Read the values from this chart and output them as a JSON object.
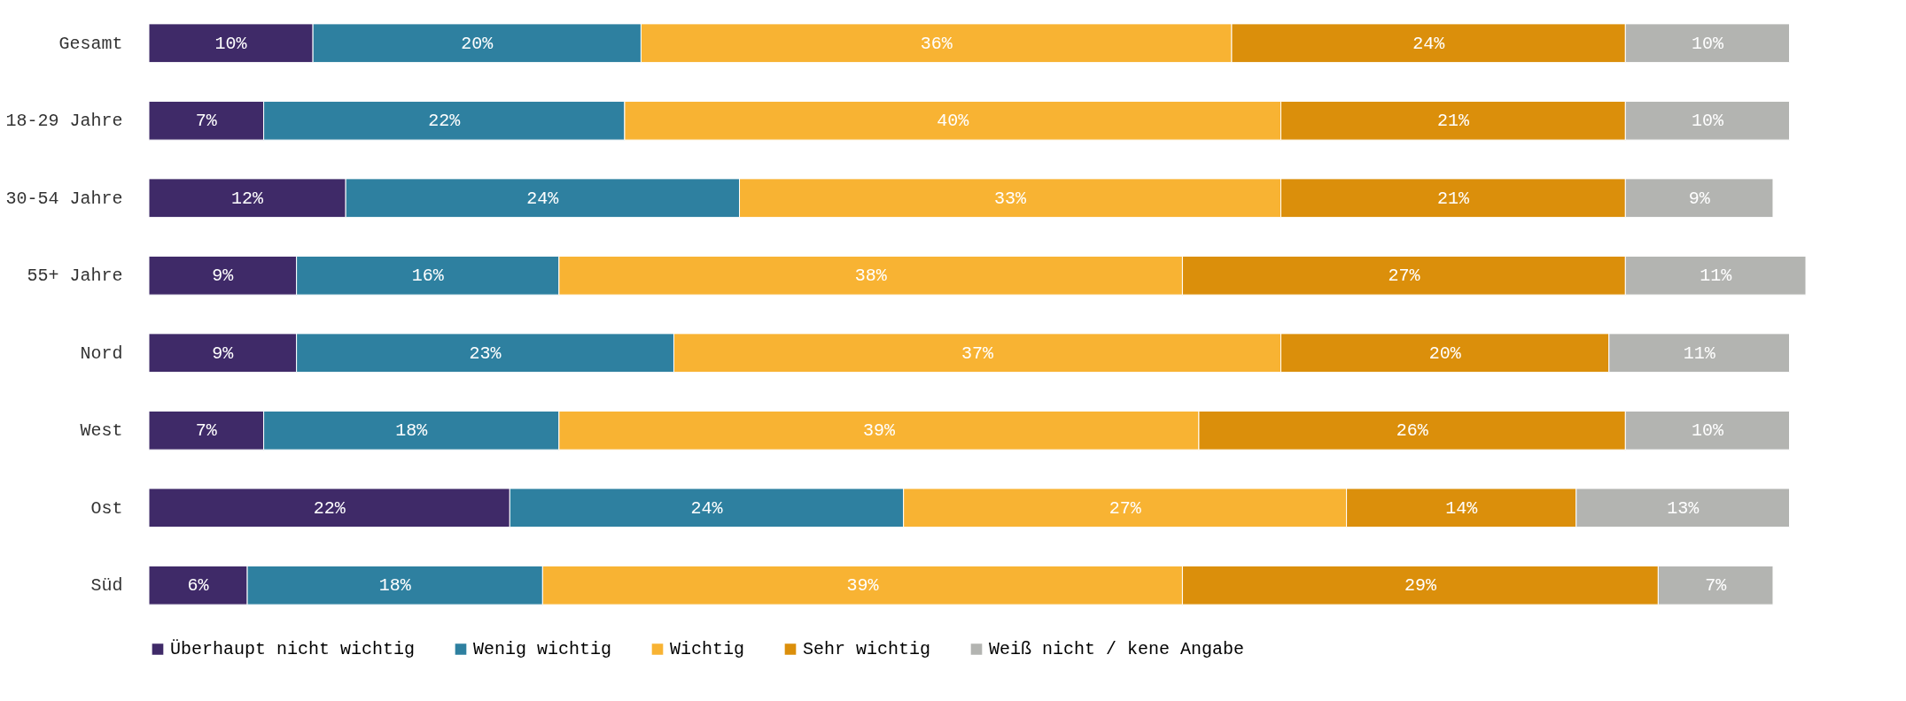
{
  "chart_data": {
    "type": "bar",
    "orientation": "horizontal",
    "stacked": true,
    "categories": [
      "Gesamt",
      "18-29 Jahre",
      "30-54 Jahre",
      "55+ Jahre",
      "Nord",
      "West",
      "Ost",
      "Süd"
    ],
    "series": [
      {
        "name": "Überhaupt nicht wichtig",
        "color": "#3f2a68",
        "values": [
          10,
          7,
          12,
          9,
          9,
          7,
          22,
          6
        ],
        "value_labels": [
          "10%",
          "7%",
          "12%",
          "9%",
          "9%",
          "7%",
          "22%",
          "6%"
        ]
      },
      {
        "name": "Wenig wichtig",
        "color": "#2e80a0",
        "values": [
          20,
          22,
          24,
          16,
          23,
          18,
          24,
          18
        ],
        "value_labels": [
          "20%",
          "22%",
          "24%",
          "16%",
          "23%",
          "18%",
          "24%",
          "18%"
        ]
      },
      {
        "name": "Wichtig",
        "color": "#f8b333",
        "values": [
          36,
          40,
          33,
          38,
          37,
          39,
          27,
          39
        ],
        "value_labels": [
          "36%",
          "40%",
          "33%",
          "38%",
          "37%",
          "39%",
          "27%",
          "39%"
        ]
      },
      {
        "name": "Sehr wichtig",
        "color": "#db8f0b",
        "values": [
          24,
          21,
          21,
          27,
          20,
          26,
          14,
          29
        ],
        "value_labels": [
          "24%",
          "21%",
          "21%",
          "27%",
          "20%",
          "26%",
          "14%",
          "29%"
        ]
      },
      {
        "name": "Weiß nicht / kene Angabe",
        "color": "#b3b4b1",
        "values": [
          10,
          10,
          9,
          11,
          11,
          10,
          13,
          7
        ],
        "value_labels": [
          "10%",
          "10%",
          "9%",
          "11%",
          "11%",
          "10%",
          "13%",
          "7%"
        ]
      }
    ],
    "xlim": [
      0,
      101
    ],
    "tick_labels": "y",
    "grid": false,
    "legend": "bottom"
  }
}
